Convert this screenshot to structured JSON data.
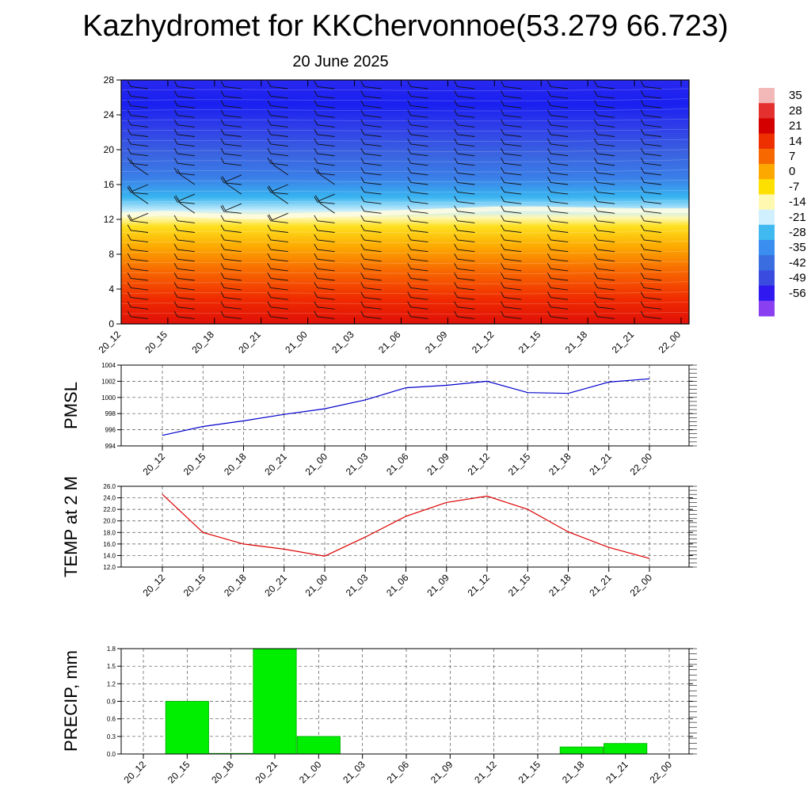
{
  "title": "Kazhydromet for KKChervonnoe(53.279 66.723)",
  "subtitle": "20 June 2025",
  "colors": {
    "pmsl_line": "#0000cc",
    "temp_line": "#dd0000",
    "precip_bar": "#00ee00",
    "precip_bar_edge": "#00aa00"
  },
  "chart_data": [
    {
      "type": "heatmap",
      "title": "",
      "x": [
        "20_12",
        "20_15",
        "20_18",
        "20_21",
        "21_00",
        "21_03",
        "21_06",
        "21_09",
        "21_12",
        "21_15",
        "21_18",
        "21_21",
        "22_00"
      ],
      "y_ticks": [
        0,
        4,
        8,
        12,
        16,
        20,
        24,
        28
      ],
      "ylim": [
        0,
        28
      ],
      "freezing_level_approx": [
        12.5,
        12.7,
        12.4,
        12.3,
        12.5,
        12.6,
        12.8,
        13.0,
        13.2,
        13.2,
        13.1,
        13.0,
        13.0
      ],
      "colorbar": {
        "labels": [
          "35",
          "28",
          "21",
          "14",
          "7",
          "0",
          "-7",
          "-14",
          "-21",
          "-28",
          "-35",
          "-42",
          "-49",
          "-56"
        ],
        "colors": [
          "#f2b8b8",
          "#e53030",
          "#d40000",
          "#ee3000",
          "#f86800",
          "#fca800",
          "#fee000",
          "#fff8b0",
          "#d0f0ff",
          "#40b8f0",
          "#3a8ef0",
          "#3a6ee0",
          "#3a4ce0",
          "#3018f0",
          "#8a40f0"
        ]
      },
      "wind_barbs": "present at every time step and level"
    },
    {
      "type": "line",
      "ylabel": "PMSL",
      "x": [
        "20_12",
        "20_15",
        "20_18",
        "20_21",
        "21_00",
        "21_03",
        "21_06",
        "21_09",
        "21_12",
        "21_15",
        "21_18",
        "21_21",
        "22_00"
      ],
      "y_ticks": [
        "994",
        "996",
        "998",
        "1000",
        "1002",
        "1004"
      ],
      "ylim": [
        994,
        1004
      ],
      "values": [
        995.3,
        996.4,
        997.1,
        997.9,
        998.6,
        999.7,
        1001.2,
        1001.5,
        1002.0,
        1000.6,
        1000.5,
        1001.9,
        1002.3
      ],
      "grid": true
    },
    {
      "type": "line",
      "ylabel": "TEMP at 2 M",
      "x": [
        "20_12",
        "20_15",
        "20_18",
        "20_21",
        "21_00",
        "21_03",
        "21_06",
        "21_09",
        "21_12",
        "21_15",
        "21_18",
        "21_21",
        "22_00"
      ],
      "y_ticks": [
        "12.0",
        "14.0",
        "16.0",
        "18.0",
        "20.0",
        "22.0",
        "24.0",
        "26.0"
      ],
      "ylim": [
        12,
        26
      ],
      "values": [
        24.6,
        18.0,
        16.0,
        15.1,
        13.9,
        17.2,
        20.8,
        23.2,
        24.3,
        22.0,
        18.1,
        15.4,
        13.5
      ],
      "grid": true
    },
    {
      "type": "bar",
      "ylabel": "PRECIP, mm",
      "x": [
        "20_12",
        "20_15",
        "20_18",
        "20_21",
        "21_00",
        "21_03",
        "21_06",
        "21_09",
        "21_12",
        "21_15",
        "21_18",
        "21_21",
        "22_00"
      ],
      "y_ticks": [
        "0.0",
        "0.3",
        "0.6",
        "0.9",
        "1.2",
        "1.5",
        "1.8"
      ],
      "ylim": [
        0,
        1.8
      ],
      "values": [
        0,
        0.9,
        0.01,
        1.8,
        0.3,
        0,
        0,
        0,
        0,
        0,
        0.12,
        0.18,
        0
      ],
      "grid": true
    }
  ]
}
